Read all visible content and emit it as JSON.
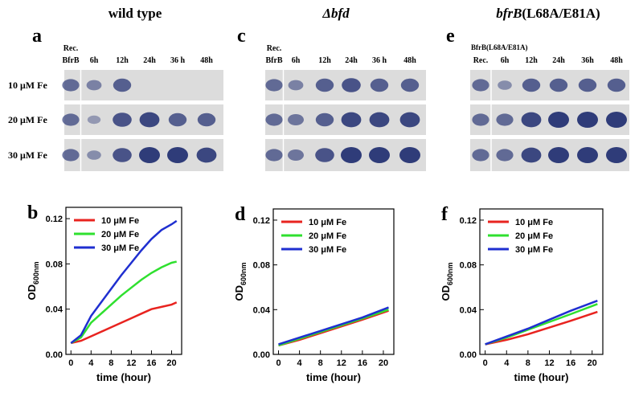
{
  "blots": [
    {
      "letter": "a",
      "header": "wild type",
      "columns": [
        [
          "Rec.",
          "BfrB"
        ],
        [
          "6h"
        ],
        [
          "12h"
        ],
        [
          "24h"
        ],
        [
          "36 h"
        ],
        [
          "48h"
        ]
      ],
      "row_labels": [
        "10 μM Fe",
        "20 μM Fe",
        "30 μM Fe"
      ]
    },
    {
      "letter": "c",
      "header_italic": "Δbfd",
      "columns": [
        [
          "Rec.",
          "BfrB"
        ],
        [
          "6h"
        ],
        [
          "12h"
        ],
        [
          "24h"
        ],
        [
          "36 h"
        ],
        [
          "48h"
        ]
      ]
    },
    {
      "letter": "e",
      "header_italic": "bfrB",
      "header": "(L68A/E81A)",
      "note": "BfrB(L68A/E81A)",
      "columns": [
        [
          "Rec."
        ],
        [
          "6h"
        ],
        [
          "12h"
        ],
        [
          "24h"
        ],
        [
          "36h"
        ],
        [
          "48h"
        ]
      ]
    }
  ],
  "chart_data": [
    {
      "type": "line",
      "letter": "b",
      "xlabel": "time (hour)",
      "ylabel": "OD",
      "ylabel_sub": "600nm",
      "xlim": [
        -1,
        22
      ],
      "ylim": [
        0,
        0.13
      ],
      "xticks": [
        0,
        4,
        8,
        12,
        16,
        20
      ],
      "yticks": [
        {
          "value": 0,
          "label": "0.00"
        },
        0.04,
        0.08,
        0.12
      ],
      "series": [
        {
          "name": "10 μM Fe",
          "color": "#e8231f",
          "x": [
            0,
            2,
            4,
            6,
            8,
            10,
            12,
            14,
            16,
            18,
            20,
            21
          ],
          "values": [
            0.01,
            0.012,
            0.016,
            0.02,
            0.024,
            0.028,
            0.032,
            0.036,
            0.04,
            0.042,
            0.044,
            0.046
          ]
        },
        {
          "name": "20 μM Fe",
          "color": "#2fe02f",
          "x": [
            0,
            2,
            4,
            6,
            8,
            10,
            12,
            14,
            16,
            18,
            20,
            21
          ],
          "values": [
            0.01,
            0.015,
            0.028,
            0.036,
            0.044,
            0.052,
            0.059,
            0.066,
            0.072,
            0.077,
            0.081,
            0.082
          ]
        },
        {
          "name": "30 μM Fe",
          "color": "#1f2fd0",
          "x": [
            0,
            2,
            4,
            6,
            8,
            10,
            12,
            14,
            16,
            18,
            20,
            21
          ],
          "values": [
            0.01,
            0.017,
            0.034,
            0.046,
            0.058,
            0.07,
            0.081,
            0.092,
            0.102,
            0.11,
            0.115,
            0.118
          ]
        }
      ]
    },
    {
      "type": "line",
      "letter": "d",
      "xlabel": "time (hour)",
      "ylabel": "OD",
      "ylabel_sub": "600nm",
      "xlim": [
        -1,
        22
      ],
      "ylim": [
        0,
        0.13
      ],
      "xticks": [
        0,
        4,
        8,
        12,
        16,
        20
      ],
      "yticks": [
        {
          "value": 0,
          "label": "0.00"
        },
        0.04,
        0.08,
        0.12
      ],
      "series": [
        {
          "name": "10 μM Fe",
          "color": "#e8231f",
          "x": [
            0,
            4,
            8,
            12,
            16,
            21
          ],
          "values": [
            0.008,
            0.013,
            0.019,
            0.025,
            0.031,
            0.039
          ]
        },
        {
          "name": "20 μM Fe",
          "color": "#2fe02f",
          "x": [
            0,
            4,
            8,
            12,
            16,
            21
          ],
          "values": [
            0.008,
            0.014,
            0.02,
            0.026,
            0.032,
            0.04
          ]
        },
        {
          "name": "30 μM Fe",
          "color": "#1f2fd0",
          "x": [
            0,
            4,
            8,
            12,
            16,
            21
          ],
          "values": [
            0.009,
            0.015,
            0.021,
            0.027,
            0.033,
            0.042
          ]
        }
      ]
    },
    {
      "type": "line",
      "letter": "f",
      "xlabel": "time (hour)",
      "ylabel": "OD",
      "ylabel_sub": "600nm",
      "xlim": [
        -1,
        22
      ],
      "ylim": [
        0,
        0.13
      ],
      "xticks": [
        0,
        4,
        8,
        12,
        16,
        20
      ],
      "yticks": [
        {
          "value": 0,
          "label": "0.00"
        },
        0.04,
        0.08,
        0.12
      ],
      "series": [
        {
          "name": "10 μM Fe",
          "color": "#e8231f",
          "x": [
            0,
            4,
            8,
            12,
            16,
            21
          ],
          "values": [
            0.009,
            0.013,
            0.018,
            0.024,
            0.03,
            0.038
          ]
        },
        {
          "name": "20 μM Fe",
          "color": "#2fe02f",
          "x": [
            0,
            4,
            8,
            12,
            16,
            21
          ],
          "values": [
            0.009,
            0.015,
            0.022,
            0.029,
            0.036,
            0.045
          ]
        },
        {
          "name": "30 μM Fe",
          "color": "#1f2fd0",
          "x": [
            0,
            4,
            8,
            12,
            16,
            21
          ],
          "values": [
            0.009,
            0.016,
            0.023,
            0.031,
            0.039,
            0.048
          ]
        }
      ]
    }
  ]
}
